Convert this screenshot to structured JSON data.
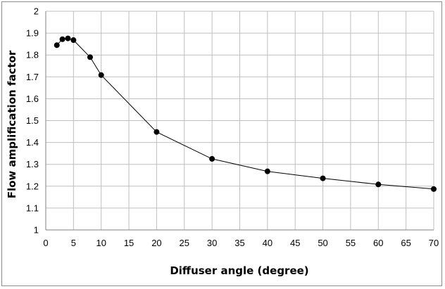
{
  "chart_data": {
    "type": "line",
    "title": "",
    "xlabel": "Diffuser angle (degree)",
    "ylabel": "Flow amplification factor",
    "xlim": [
      0,
      70
    ],
    "ylim": [
      1,
      2
    ],
    "x_ticks": [
      "0",
      "5",
      "10",
      "15",
      "20",
      "25",
      "30",
      "35",
      "40",
      "45",
      "50",
      "55",
      "60",
      "65",
      "70"
    ],
    "y_ticks": [
      "1",
      "1.1",
      "1.2",
      "1.3",
      "1.4",
      "1.5",
      "1.6",
      "1.7",
      "1.8",
      "1.9",
      "2"
    ],
    "grid": true,
    "legend": "none",
    "series": [
      {
        "x": [
          2,
          3,
          4,
          5,
          8,
          10,
          20,
          30,
          40,
          50,
          60,
          70
        ],
        "y": [
          1.845,
          1.872,
          1.876,
          1.868,
          1.79,
          1.708,
          1.448,
          1.325,
          1.268,
          1.236,
          1.208,
          1.187
        ],
        "color": "#000000"
      }
    ],
    "grid_color": "#bfbfbf",
    "marker": "circle"
  }
}
